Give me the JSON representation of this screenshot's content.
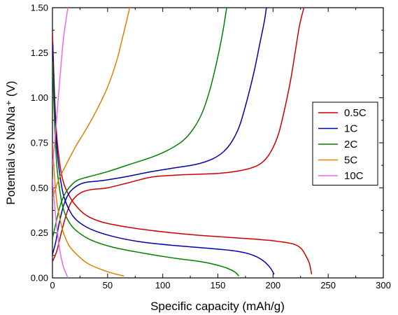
{
  "chart_data": {
    "type": "line",
    "xlabel": "Specific capacity (mAh/g)",
    "ylabel": "Potential vs Na/Na⁺ (V)",
    "xlim": [
      0,
      300
    ],
    "ylim": [
      0,
      1.5
    ],
    "x_ticks": [
      0,
      50,
      100,
      150,
      200,
      250,
      300
    ],
    "x_tick_labels": [
      "0",
      "50",
      "100",
      "150",
      "200",
      "250",
      "300"
    ],
    "y_ticks": [
      0,
      0.25,
      0.5,
      0.75,
      1.0,
      1.25,
      1.5
    ],
    "y_tick_labels": [
      "0.00",
      "0.25",
      "0.50",
      "0.75",
      "1.00",
      "1.25",
      "1.50"
    ],
    "grid": false,
    "legend_position": "right",
    "series": [
      {
        "name": "0.5C",
        "color": "#cc0000",
        "discharge": [
          [
            0,
            1.37
          ],
          [
            2,
            1.0
          ],
          [
            4,
            0.78
          ],
          [
            7,
            0.62
          ],
          [
            10,
            0.53
          ],
          [
            14,
            0.47
          ],
          [
            20,
            0.41
          ],
          [
            30,
            0.35
          ],
          [
            45,
            0.31
          ],
          [
            70,
            0.28
          ],
          [
            100,
            0.256
          ],
          [
            130,
            0.238
          ],
          [
            160,
            0.225
          ],
          [
            190,
            0.212
          ],
          [
            210,
            0.198
          ],
          [
            220,
            0.185
          ],
          [
            226,
            0.16
          ],
          [
            230,
            0.12
          ],
          [
            233,
            0.08
          ],
          [
            235,
            0.02
          ]
        ],
        "charge": [
          [
            0,
            0.09
          ],
          [
            4,
            0.15
          ],
          [
            8,
            0.25
          ],
          [
            12,
            0.34
          ],
          [
            17,
            0.42
          ],
          [
            25,
            0.47
          ],
          [
            35,
            0.49
          ],
          [
            50,
            0.5
          ],
          [
            70,
            0.53
          ],
          [
            90,
            0.56
          ],
          [
            110,
            0.57
          ],
          [
            130,
            0.575
          ],
          [
            150,
            0.58
          ],
          [
            165,
            0.59
          ],
          [
            180,
            0.61
          ],
          [
            190,
            0.64
          ],
          [
            198,
            0.7
          ],
          [
            205,
            0.8
          ],
          [
            211,
            0.95
          ],
          [
            216,
            1.1
          ],
          [
            220,
            1.25
          ],
          [
            224,
            1.4
          ],
          [
            228,
            1.5
          ]
        ]
      },
      {
        "name": "1C",
        "color": "#0000aa",
        "discharge": [
          [
            0,
            1.3
          ],
          [
            2,
            0.95
          ],
          [
            4,
            0.72
          ],
          [
            7,
            0.56
          ],
          [
            10,
            0.46
          ],
          [
            15,
            0.38
          ],
          [
            22,
            0.32
          ],
          [
            35,
            0.27
          ],
          [
            55,
            0.23
          ],
          [
            80,
            0.2
          ],
          [
            110,
            0.18
          ],
          [
            140,
            0.165
          ],
          [
            165,
            0.15
          ],
          [
            180,
            0.13
          ],
          [
            190,
            0.1
          ],
          [
            197,
            0.06
          ],
          [
            201,
            0.02
          ]
        ],
        "charge": [
          [
            0,
            0.13
          ],
          [
            3,
            0.2
          ],
          [
            6,
            0.3
          ],
          [
            10,
            0.4
          ],
          [
            15,
            0.47
          ],
          [
            22,
            0.51
          ],
          [
            30,
            0.53
          ],
          [
            45,
            0.54
          ],
          [
            65,
            0.56
          ],
          [
            90,
            0.59
          ],
          [
            110,
            0.61
          ],
          [
            130,
            0.63
          ],
          [
            145,
            0.66
          ],
          [
            155,
            0.7
          ],
          [
            163,
            0.76
          ],
          [
            170,
            0.85
          ],
          [
            177,
            1.0
          ],
          [
            183,
            1.15
          ],
          [
            188,
            1.3
          ],
          [
            192,
            1.42
          ],
          [
            194,
            1.5
          ]
        ]
      },
      {
        "name": "2C",
        "color": "#008000",
        "discharge": [
          [
            0,
            1.2
          ],
          [
            2,
            0.85
          ],
          [
            4,
            0.62
          ],
          [
            7,
            0.47
          ],
          [
            10,
            0.38
          ],
          [
            15,
            0.31
          ],
          [
            22,
            0.26
          ],
          [
            35,
            0.21
          ],
          [
            55,
            0.17
          ],
          [
            80,
            0.14
          ],
          [
            110,
            0.11
          ],
          [
            135,
            0.09
          ],
          [
            150,
            0.07
          ],
          [
            160,
            0.05
          ],
          [
            166,
            0.03
          ],
          [
            169,
            0.01
          ]
        ],
        "charge": [
          [
            0,
            0.22
          ],
          [
            3,
            0.3
          ],
          [
            6,
            0.38
          ],
          [
            10,
            0.45
          ],
          [
            15,
            0.5
          ],
          [
            22,
            0.54
          ],
          [
            32,
            0.56
          ],
          [
            50,
            0.59
          ],
          [
            70,
            0.63
          ],
          [
            90,
            0.67
          ],
          [
            105,
            0.71
          ],
          [
            118,
            0.76
          ],
          [
            128,
            0.83
          ],
          [
            136,
            0.92
          ],
          [
            143,
            1.05
          ],
          [
            149,
            1.2
          ],
          [
            154,
            1.35
          ],
          [
            158,
            1.5
          ]
        ]
      },
      {
        "name": "5C",
        "color": "#e08000",
        "discharge": [
          [
            0,
            0.75
          ],
          [
            2,
            0.55
          ],
          [
            4,
            0.42
          ],
          [
            7,
            0.32
          ],
          [
            10,
            0.25
          ],
          [
            15,
            0.18
          ],
          [
            22,
            0.13
          ],
          [
            32,
            0.08
          ],
          [
            45,
            0.045
          ],
          [
            55,
            0.025
          ],
          [
            65,
            0.01
          ]
        ],
        "charge": [
          [
            0,
            0.44
          ],
          [
            3,
            0.5
          ],
          [
            6,
            0.55
          ],
          [
            10,
            0.6
          ],
          [
            15,
            0.66
          ],
          [
            22,
            0.74
          ],
          [
            30,
            0.82
          ],
          [
            40,
            0.93
          ],
          [
            50,
            1.06
          ],
          [
            58,
            1.2
          ],
          [
            63,
            1.32
          ],
          [
            67,
            1.42
          ],
          [
            70,
            1.5
          ]
        ]
      },
      {
        "name": "10C",
        "color": "#ee66ee",
        "discharge": [
          [
            0,
            0.55
          ],
          [
            2,
            0.4
          ],
          [
            4,
            0.28
          ],
          [
            6,
            0.18
          ],
          [
            8,
            0.11
          ],
          [
            10,
            0.06
          ],
          [
            12,
            0.03
          ],
          [
            14,
            0.0
          ]
        ],
        "charge": [
          [
            0,
            0.62
          ],
          [
            2,
            0.75
          ],
          [
            4,
            0.9
          ],
          [
            6,
            1.05
          ],
          [
            8,
            1.2
          ],
          [
            10,
            1.33
          ],
          [
            12,
            1.42
          ],
          [
            14,
            1.5
          ]
        ]
      }
    ]
  }
}
